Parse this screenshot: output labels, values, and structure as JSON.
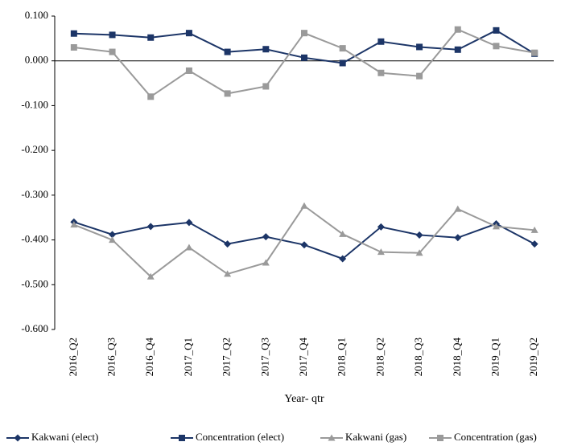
{
  "chart_data": {
    "type": "line",
    "x_label": "Year- qtr",
    "categories": [
      "2016_Q2",
      "2016_Q3",
      "2016_Q4",
      "2017_Q1",
      "2017_Q2",
      "2017_Q3",
      "2017_Q4",
      "2018_Q1",
      "2018_Q2",
      "2018_Q3",
      "2018_Q4",
      "2019_Q1",
      "2019_Q2"
    ],
    "series": [
      {
        "name": "Kakwani (elect)",
        "color": "#1c3567",
        "marker": "diamond",
        "values": [
          -0.36,
          -0.388,
          -0.37,
          -0.361,
          -0.409,
          -0.393,
          -0.411,
          -0.442,
          -0.371,
          -0.389,
          -0.395,
          -0.364,
          -0.409
        ]
      },
      {
        "name": "Concentration (elect)",
        "color": "#1c3567",
        "marker": "square",
        "values": [
          0.061,
          0.058,
          0.052,
          0.062,
          0.02,
          0.026,
          0.007,
          -0.005,
          0.043,
          0.031,
          0.025,
          0.068,
          0.016
        ]
      },
      {
        "name": "Kakwani (gas)",
        "color": "#9a9a9a",
        "marker": "triangle",
        "values": [
          -0.366,
          -0.4,
          -0.482,
          -0.417,
          -0.476,
          -0.451,
          -0.324,
          -0.387,
          -0.427,
          -0.429,
          -0.331,
          -0.37,
          -0.378
        ]
      },
      {
        "name": "Concentration (gas)",
        "color": "#9a9a9a",
        "marker": "square",
        "values": [
          0.03,
          0.02,
          -0.08,
          -0.022,
          -0.073,
          -0.057,
          0.062,
          0.028,
          -0.027,
          -0.034,
          0.07,
          0.033,
          0.018
        ]
      }
    ],
    "ylim": [
      -0.6,
      0.1
    ],
    "yticks": [
      {
        "value": 0.1,
        "label": "0.100"
      },
      {
        "value": 0,
        "label": "0.000"
      },
      {
        "value": -0.1,
        "label": "-0.100"
      },
      {
        "value": -0.2,
        "label": "-0.200"
      },
      {
        "value": -0.3,
        "label": "-0.300"
      },
      {
        "value": -0.4,
        "label": "-0.400"
      },
      {
        "value": -0.5,
        "label": "-0.500"
      },
      {
        "value": -0.6,
        "label": "-0.600"
      }
    ]
  }
}
